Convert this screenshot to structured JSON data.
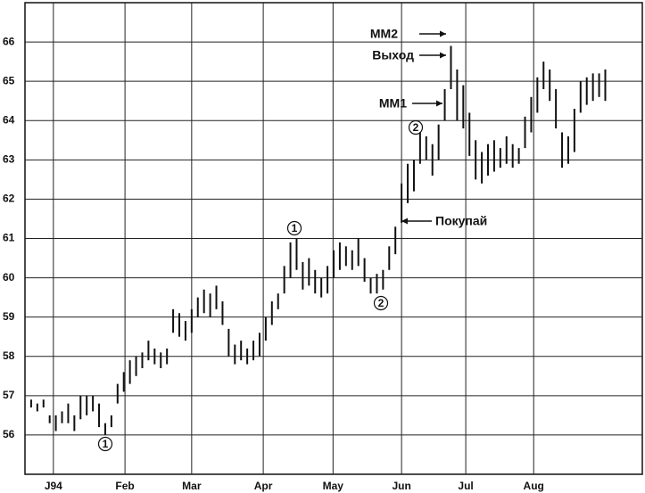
{
  "chart_data": {
    "type": "hilo",
    "color": "#111111",
    "x": [
      1,
      2,
      3,
      4,
      5,
      6,
      7,
      8,
      9,
      10,
      11,
      12,
      13,
      14,
      15,
      16,
      17,
      18,
      19,
      20,
      21,
      22,
      23,
      24,
      25,
      26,
      27,
      28,
      29,
      30,
      31,
      32,
      33,
      34,
      35,
      36,
      37,
      38,
      39,
      40,
      41,
      42,
      43,
      44,
      45,
      46,
      47,
      48,
      49,
      50,
      51,
      52,
      53,
      54,
      55,
      56,
      57,
      58,
      59,
      60,
      61,
      62,
      63,
      64,
      65,
      66,
      67,
      68,
      69,
      70,
      71,
      72,
      73,
      74,
      75,
      76,
      77,
      78,
      79,
      80,
      81,
      82,
      83,
      84,
      85,
      86,
      87,
      88,
      89,
      90,
      91,
      92,
      93,
      94
    ],
    "high": [
      56.9,
      56.8,
      56.9,
      56.5,
      56.5,
      56.6,
      56.8,
      56.5,
      57.0,
      57.0,
      57.0,
      56.8,
      56.3,
      56.5,
      57.3,
      57.6,
      57.9,
      58.0,
      58.1,
      58.4,
      58.2,
      58.1,
      58.2,
      59.2,
      59.1,
      58.9,
      59.2,
      59.5,
      59.7,
      59.6,
      59.8,
      59.4,
      58.7,
      58.3,
      58.4,
      58.2,
      58.4,
      58.6,
      59.0,
      59.4,
      59.6,
      60.3,
      60.9,
      61.0,
      60.4,
      60.5,
      60.2,
      60.0,
      60.3,
      60.7,
      60.9,
      60.8,
      60.7,
      61.0,
      60.5,
      60.0,
      60.1,
      60.2,
      60.8,
      61.3,
      62.4,
      62.9,
      63.0,
      63.7,
      63.6,
      63.4,
      63.9,
      64.8,
      65.9,
      65.3,
      64.9,
      64.2,
      63.5,
      63.2,
      63.4,
      63.5,
      63.3,
      63.6,
      63.4,
      63.3,
      64.1,
      64.6,
      65.1,
      65.5,
      65.3,
      64.8,
      63.7,
      63.6,
      64.3,
      65.0,
      65.1,
      65.2,
      65.2,
      65.3
    ],
    "low": [
      56.7,
      56.6,
      56.7,
      56.3,
      56.1,
      56.3,
      56.3,
      56.1,
      56.4,
      56.5,
      56.6,
      56.2,
      56.0,
      56.2,
      56.8,
      57.1,
      57.3,
      57.5,
      57.7,
      57.9,
      57.8,
      57.7,
      57.8,
      58.6,
      58.5,
      58.4,
      58.6,
      59.0,
      59.1,
      59.0,
      59.2,
      58.8,
      58.0,
      57.8,
      57.9,
      57.8,
      57.9,
      58.0,
      58.4,
      58.8,
      59.2,
      59.6,
      60.0,
      60.2,
      59.7,
      59.8,
      59.6,
      59.5,
      59.6,
      60.0,
      60.2,
      60.3,
      60.2,
      60.3,
      59.9,
      59.6,
      59.6,
      59.7,
      60.2,
      60.6,
      61.4,
      61.9,
      62.2,
      62.9,
      63.0,
      62.6,
      63.0,
      64.0,
      64.8,
      64.0,
      63.8,
      63.1,
      62.5,
      62.4,
      62.6,
      62.7,
      62.8,
      62.9,
      62.8,
      62.9,
      63.3,
      63.7,
      64.2,
      64.8,
      64.5,
      63.8,
      62.8,
      62.9,
      63.2,
      64.2,
      64.4,
      64.5,
      64.6,
      64.5
    ],
    "xlim": [
      0,
      100
    ],
    "xticks": [
      {
        "value": 4.6,
        "label": "J94"
      },
      {
        "value": 16.2,
        "label": "Feb"
      },
      {
        "value": 27,
        "label": "Mar"
      },
      {
        "value": 38.6,
        "label": "Apr"
      },
      {
        "value": 49.9,
        "label": "May"
      },
      {
        "value": 61,
        "label": "Jun"
      },
      {
        "value": 71.4,
        "label": "Jul"
      },
      {
        "value": 82.4,
        "label": "Aug"
      }
    ],
    "ylim": [
      55,
      67
    ],
    "yticks": [
      56,
      57,
      58,
      59,
      60,
      61,
      62,
      63,
      64,
      65,
      66
    ],
    "grid": true,
    "annotations": [
      "MM2",
      "Выход",
      "MM1",
      "Покупай",
      "1",
      "1",
      "2",
      "2"
    ]
  }
}
